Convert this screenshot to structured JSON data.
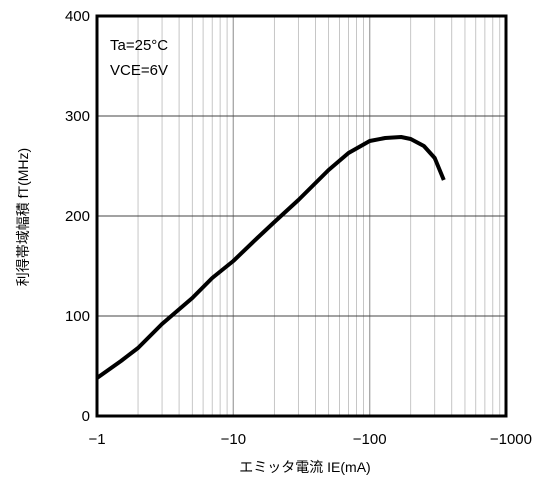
{
  "chart_data": {
    "type": "line",
    "title": "",
    "xlabel": "エミッタ電流  IE(mA)",
    "ylabel": "利得帯域幅積  fT(MHz)",
    "x_scale": "log",
    "x_ticks": [
      -1,
      -10,
      -100,
      -1000
    ],
    "x_tick_labels": [
      "−1",
      "−10",
      "−100",
      "−1000"
    ],
    "xlim": [
      -1,
      -1000
    ],
    "ylim": [
      0,
      400
    ],
    "y_ticks": [
      0,
      100,
      200,
      300,
      400
    ],
    "y_tick_labels": [
      "0",
      "100",
      "200",
      "300",
      "400"
    ],
    "grid": true,
    "annotations": [
      "Ta=25°C",
      "VCE=6V"
    ],
    "series": [
      {
        "name": "",
        "x": [
          -1,
          -1.5,
          -2,
          -3,
          -5,
          -7,
          -10,
          -15,
          -20,
          -30,
          -50,
          -70,
          -100,
          -130,
          -170,
          -200,
          -250,
          -300,
          -350
        ],
        "y": [
          38,
          55,
          68,
          92,
          118,
          138,
          155,
          178,
          194,
          216,
          246,
          263,
          275,
          278,
          279,
          277,
          270,
          258,
          236
        ]
      }
    ]
  }
}
